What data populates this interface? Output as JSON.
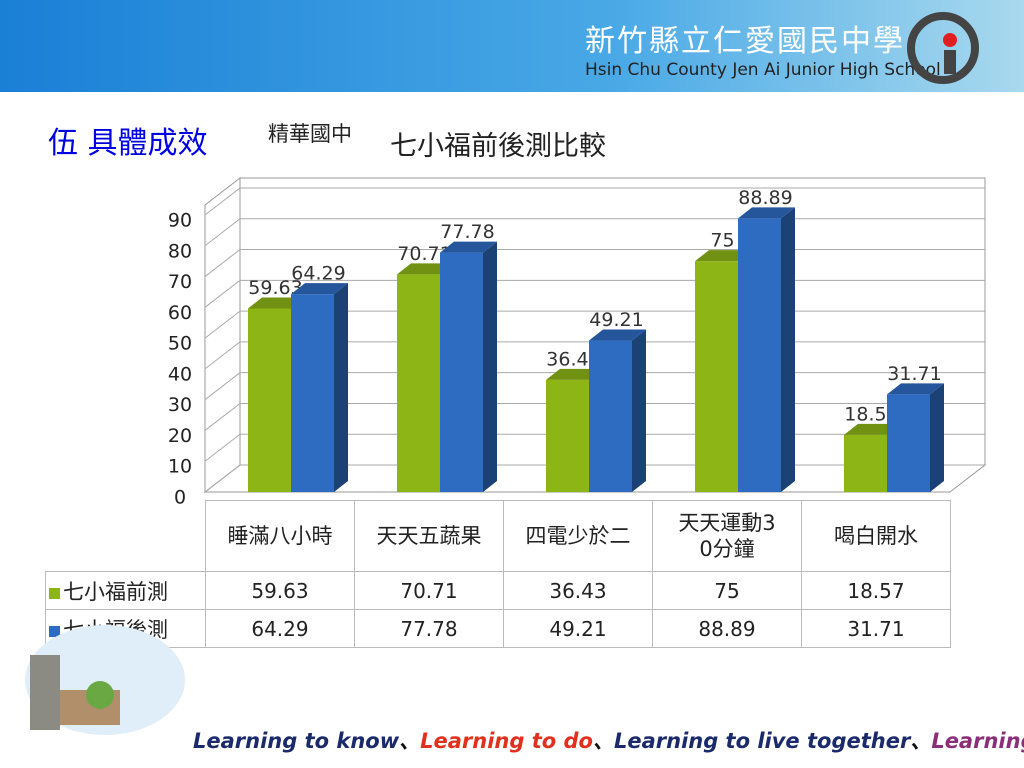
{
  "header": {
    "school_name": "新竹縣立仁愛國民中學",
    "school_name_en": "Hsin Chu County Jen Ai Junior High School"
  },
  "section": "伍  具體成效",
  "subtitle": "精華國中",
  "slogan": [
    "Learning to know",
    "、",
    "Learning to do",
    "、",
    "Learning to live together",
    "、",
    "Learning to be"
  ],
  "chart_data": {
    "type": "bar3d",
    "title": "七小福前後測比較",
    "categories": [
      "睡滿八小時",
      "天天五蔬果",
      "四電少於二",
      "天天運動30分鐘",
      "喝白開水"
    ],
    "series": [
      {
        "name": "七小福前測",
        "color": "#8cb515",
        "values": [
          59.63,
          70.71,
          36.43,
          75,
          18.57
        ]
      },
      {
        "name": "七小福後測",
        "color": "#2e6cc2",
        "values": [
          64.29,
          77.78,
          49.21,
          88.89,
          31.71
        ]
      }
    ],
    "ylim": [
      0,
      90
    ],
    "yticks": [
      0,
      10,
      20,
      30,
      40,
      50,
      60,
      70,
      80,
      90
    ],
    "grid": true
  }
}
